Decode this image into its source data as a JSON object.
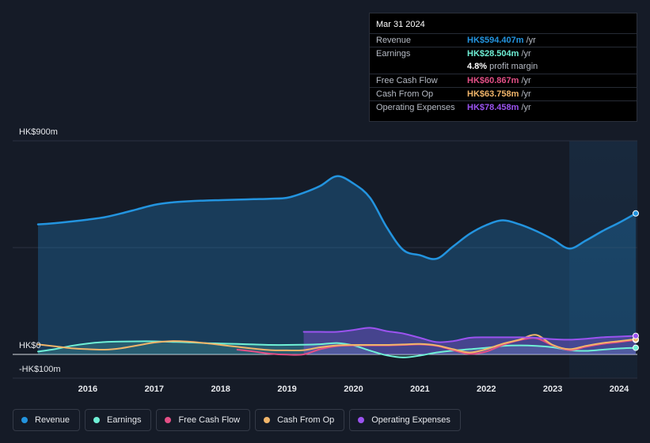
{
  "tooltip": {
    "date": "Mar 31 2024",
    "rows": [
      {
        "label": "Revenue",
        "value": "HK$594.407m",
        "unit": "/yr",
        "color": "#2394df"
      },
      {
        "label": "Earnings",
        "value": "HK$28.504m",
        "unit": "/yr",
        "color": "#6ff0d6"
      },
      {
        "label": "",
        "value": "4.8%",
        "unit": "profit margin",
        "color": "#ffffff"
      },
      {
        "label": "Free Cash Flow",
        "value": "HK$60.867m",
        "unit": "/yr",
        "color": "#e34f86"
      },
      {
        "label": "Cash From Op",
        "value": "HK$63.758m",
        "unit": "/yr",
        "color": "#f1b56a"
      },
      {
        "label": "Operating Expenses",
        "value": "HK$78.458m",
        "unit": "/yr",
        "color": "#9b53f0"
      }
    ]
  },
  "legend": [
    {
      "label": "Revenue",
      "color": "#2394df"
    },
    {
      "label": "Earnings",
      "color": "#6ff0d6"
    },
    {
      "label": "Free Cash Flow",
      "color": "#e34f86"
    },
    {
      "label": "Cash From Op",
      "color": "#f1b56a"
    },
    {
      "label": "Operating Expenses",
      "color": "#9b53f0"
    }
  ],
  "chart_data": {
    "type": "area",
    "y_axis_labels": [
      {
        "text": "HK$900m",
        "value": 900
      },
      {
        "text": "HK$0",
        "value": 0
      },
      {
        "text": "-HK$100m",
        "value": -100
      }
    ],
    "ylim": [
      -100,
      900
    ],
    "xlim": [
      2015.25,
      2024.25
    ],
    "x_ticks": [
      "2016",
      "2017",
      "2018",
      "2019",
      "2020",
      "2021",
      "2022",
      "2023",
      "2024"
    ],
    "x_tick_values": [
      2016,
      2017,
      2018,
      2019,
      2020,
      2021,
      2022,
      2023,
      2024
    ],
    "grid": false,
    "forecast_shade_from": 2023.25,
    "series": [
      {
        "name": "Revenue",
        "color": "#2394df",
        "filled": true,
        "points": [
          [
            2015.25,
            548
          ],
          [
            2015.5,
            553
          ],
          [
            2015.75,
            560
          ],
          [
            2016.0,
            568
          ],
          [
            2016.25,
            578
          ],
          [
            2016.5,
            594
          ],
          [
            2016.75,
            612
          ],
          [
            2017.0,
            630
          ],
          [
            2017.25,
            640
          ],
          [
            2017.5,
            645
          ],
          [
            2017.75,
            648
          ],
          [
            2018.0,
            650
          ],
          [
            2018.25,
            652
          ],
          [
            2018.5,
            654
          ],
          [
            2018.75,
            656
          ],
          [
            2019.0,
            660
          ],
          [
            2019.25,
            681
          ],
          [
            2019.5,
            710
          ],
          [
            2019.75,
            751
          ],
          [
            2020.0,
            720
          ],
          [
            2020.25,
            660
          ],
          [
            2020.5,
            536
          ],
          [
            2020.75,
            440
          ],
          [
            2021.0,
            418
          ],
          [
            2021.25,
            403
          ],
          [
            2021.5,
            455
          ],
          [
            2021.75,
            508
          ],
          [
            2022.0,
            545
          ],
          [
            2022.25,
            565
          ],
          [
            2022.5,
            548
          ],
          [
            2022.75,
            520
          ],
          [
            2023.0,
            485
          ],
          [
            2023.25,
            446
          ],
          [
            2023.5,
            480
          ],
          [
            2023.75,
            520
          ],
          [
            2024.0,
            555
          ],
          [
            2024.25,
            594
          ]
        ]
      },
      {
        "name": "Earnings",
        "color": "#6ff0d6",
        "filled": true,
        "points": [
          [
            2015.25,
            12
          ],
          [
            2015.5,
            22
          ],
          [
            2015.75,
            36
          ],
          [
            2016.0,
            46
          ],
          [
            2016.25,
            52
          ],
          [
            2016.5,
            54
          ],
          [
            2016.75,
            55
          ],
          [
            2017.0,
            55
          ],
          [
            2017.25,
            53
          ],
          [
            2017.5,
            51
          ],
          [
            2017.75,
            48
          ],
          [
            2018.0,
            46
          ],
          [
            2018.25,
            44
          ],
          [
            2018.5,
            42
          ],
          [
            2018.75,
            40
          ],
          [
            2019.0,
            40
          ],
          [
            2019.25,
            41
          ],
          [
            2019.5,
            43
          ],
          [
            2019.75,
            48
          ],
          [
            2020.0,
            38
          ],
          [
            2020.25,
            16
          ],
          [
            2020.5,
            -4
          ],
          [
            2020.75,
            -13
          ],
          [
            2021.0,
            -5
          ],
          [
            2021.25,
            8
          ],
          [
            2021.5,
            16
          ],
          [
            2021.75,
            22
          ],
          [
            2022.0,
            28
          ],
          [
            2022.25,
            36
          ],
          [
            2022.5,
            38
          ],
          [
            2022.75,
            36
          ],
          [
            2023.0,
            30
          ],
          [
            2023.25,
            18
          ],
          [
            2023.5,
            15
          ],
          [
            2023.75,
            20
          ],
          [
            2024.0,
            25
          ],
          [
            2024.25,
            28
          ]
        ]
      },
      {
        "name": "Free Cash Flow",
        "color": "#e34f86",
        "filled": false,
        "points": [
          [
            2018.25,
            20
          ],
          [
            2018.5,
            12
          ],
          [
            2018.75,
            3
          ],
          [
            2019.0,
            -1
          ],
          [
            2019.25,
            0
          ],
          [
            2019.5,
            22
          ],
          [
            2019.75,
            35
          ],
          [
            2020.0,
            38
          ],
          [
            2020.25,
            38
          ],
          [
            2020.5,
            38
          ],
          [
            2020.75,
            40
          ],
          [
            2021.0,
            42
          ],
          [
            2021.25,
            36
          ],
          [
            2021.5,
            18
          ],
          [
            2021.75,
            2
          ],
          [
            2022.0,
            12
          ],
          [
            2022.25,
            40
          ],
          [
            2022.5,
            60
          ],
          [
            2022.75,
            68
          ],
          [
            2023.0,
            38
          ],
          [
            2023.25,
            18
          ],
          [
            2023.5,
            32
          ],
          [
            2023.75,
            44
          ],
          [
            2024.0,
            52
          ],
          [
            2024.25,
            61
          ]
        ]
      },
      {
        "name": "Cash From Op",
        "color": "#f1b56a",
        "filled": false,
        "points": [
          [
            2015.25,
            42
          ],
          [
            2015.5,
            34
          ],
          [
            2015.75,
            26
          ],
          [
            2016.0,
            22
          ],
          [
            2016.25,
            20
          ],
          [
            2016.5,
            26
          ],
          [
            2016.75,
            38
          ],
          [
            2017.0,
            50
          ],
          [
            2017.25,
            56
          ],
          [
            2017.5,
            54
          ],
          [
            2017.75,
            48
          ],
          [
            2018.0,
            40
          ],
          [
            2018.25,
            32
          ],
          [
            2018.5,
            24
          ],
          [
            2018.75,
            18
          ],
          [
            2019.0,
            17
          ],
          [
            2019.25,
            18
          ],
          [
            2019.5,
            30
          ],
          [
            2019.75,
            38
          ],
          [
            2020.0,
            40
          ],
          [
            2020.25,
            40
          ],
          [
            2020.5,
            40
          ],
          [
            2020.75,
            42
          ],
          [
            2021.0,
            44
          ],
          [
            2021.25,
            38
          ],
          [
            2021.5,
            22
          ],
          [
            2021.75,
            8
          ],
          [
            2022.0,
            22
          ],
          [
            2022.25,
            45
          ],
          [
            2022.5,
            62
          ],
          [
            2022.75,
            82
          ],
          [
            2023.0,
            40
          ],
          [
            2023.25,
            22
          ],
          [
            2023.5,
            36
          ],
          [
            2023.75,
            48
          ],
          [
            2024.0,
            56
          ],
          [
            2024.25,
            64
          ]
        ]
      },
      {
        "name": "Operating Expenses",
        "color": "#9b53f0",
        "filled": true,
        "points": [
          [
            2019.25,
            95
          ],
          [
            2019.5,
            95
          ],
          [
            2019.75,
            95
          ],
          [
            2020.0,
            103
          ],
          [
            2020.25,
            112
          ],
          [
            2020.5,
            98
          ],
          [
            2020.75,
            88
          ],
          [
            2021.0,
            70
          ],
          [
            2021.25,
            52
          ],
          [
            2021.5,
            56
          ],
          [
            2021.75,
            70
          ],
          [
            2022.0,
            72
          ],
          [
            2022.25,
            72
          ],
          [
            2022.5,
            72
          ],
          [
            2022.75,
            70
          ],
          [
            2023.0,
            64
          ],
          [
            2023.25,
            62
          ],
          [
            2023.5,
            66
          ],
          [
            2023.75,
            72
          ],
          [
            2024.0,
            75
          ],
          [
            2024.25,
            78
          ]
        ]
      }
    ]
  }
}
